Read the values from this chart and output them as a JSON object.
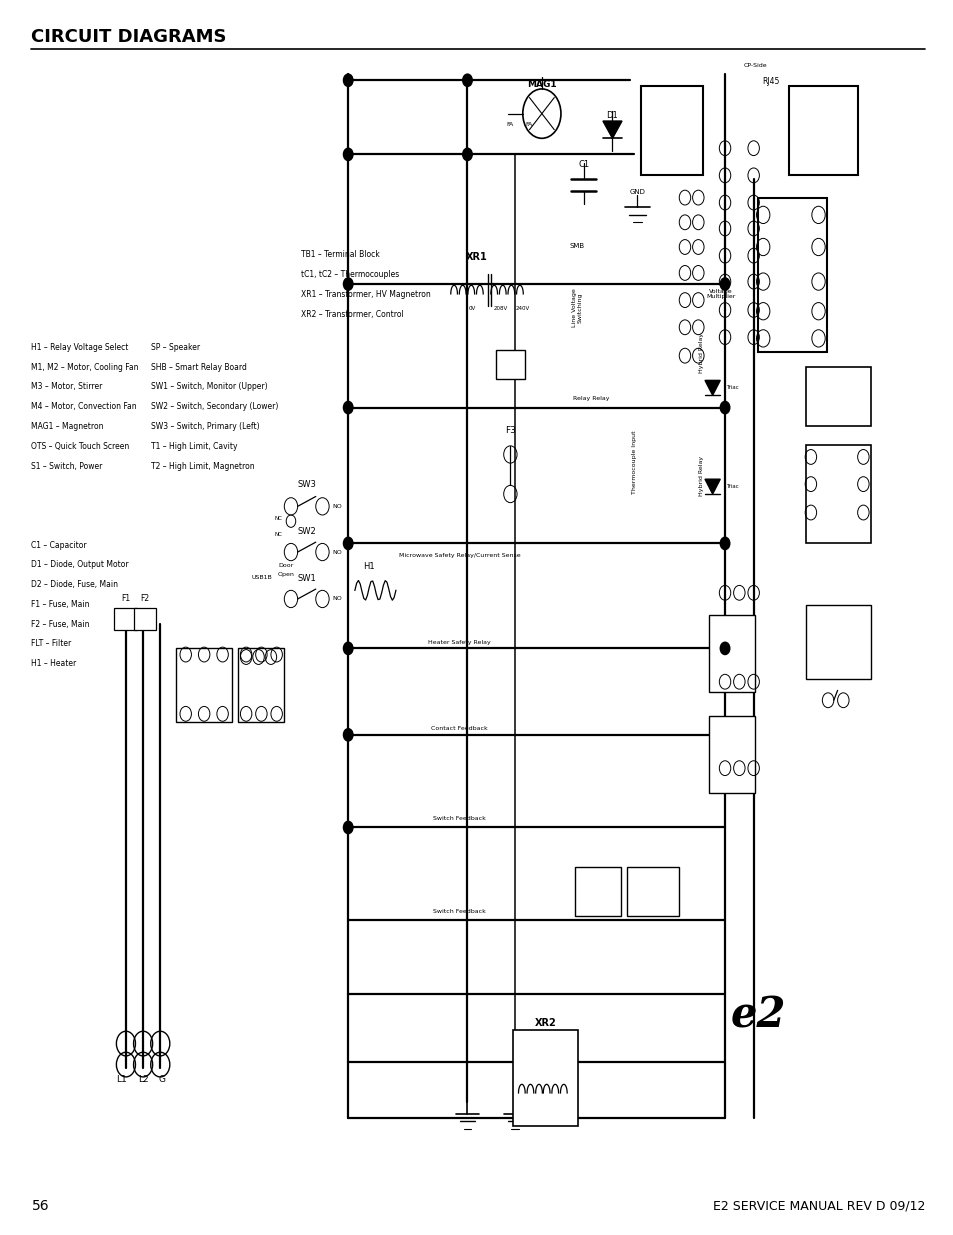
{
  "title": "CIRCUIT DIAGRAMS",
  "page_number": "56",
  "footer_text": "E2 SERVICE MANUAL REV D 09/12",
  "background_color": "#ffffff",
  "title_fontsize": 13,
  "page_num_fontsize": 10,
  "footer_fontsize": 9,
  "legend_left": [
    "C1 – Capacitor",
    "D1 – Diode, Output Motor",
    "D2 – Diode, Fuse, Main",
    "F1 – Fuse, Main",
    "F2 – Fuse, Main",
    "FLT – Filter",
    "H1 – Heater"
  ],
  "legend_mid1": [
    "H1 – Relay Voltage Select",
    "M1, M2 – Motor, Cooling Fan",
    "M3 – Motor, Stirrer",
    "M4 – Motor, Convection Fan",
    "MAG1 – Magnetron",
    "OTS – Quick Touch Screen",
    "S1 – Switch, Power"
  ],
  "legend_mid2": [
    "SP – Speaker",
    "SHB – Smart Relay Board",
    "SW1 – Switch, Monitor (Upper)",
    "SW2 – Switch, Secondary (Lower)",
    "SW3 – Switch, Primary (Left)",
    "T1 – High Limit, Cavity",
    "T2 – High Limit, Magnetron"
  ],
  "legend_right": [
    "TB1 – Terminal Block",
    "tC1, tC2 – Thermocouples",
    "XR1 – Transformer, HV Magnetron",
    "XR2 – Transformer, Control"
  ]
}
